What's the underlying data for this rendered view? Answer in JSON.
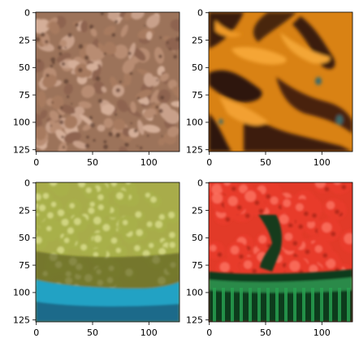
{
  "figure": {
    "background": "#ffffff"
  },
  "chart_data": [
    {
      "type": "image",
      "subject": "brown pebbles / nuts",
      "xticks": [
        0,
        50,
        100
      ],
      "yticks": [
        0,
        25,
        50,
        75,
        100,
        125
      ],
      "xlim": [
        0,
        127
      ],
      "ylim": [
        127,
        0
      ],
      "colors": {
        "base": "#a77a5e",
        "light": "#c8a08a",
        "dark": "#5a3a2c"
      }
    },
    {
      "type": "image",
      "subject": "orange peppers",
      "xticks": [
        0,
        50,
        100
      ],
      "yticks": [
        0,
        25,
        50,
        75,
        100,
        125
      ],
      "xlim": [
        0,
        127
      ],
      "ylim": [
        127,
        0
      ],
      "colors": {
        "base": "#e08a18",
        "light": "#f3a535",
        "dark": "#3a1a0c",
        "accent": "#3d6a6a"
      }
    },
    {
      "type": "image",
      "subject": "green grapes in blue basket",
      "xticks": [
        0,
        50,
        100
      ],
      "yticks": [
        0,
        25,
        50,
        75,
        100,
        125
      ],
      "xlim": [
        0,
        127
      ],
      "ylim": [
        127,
        0
      ],
      "colors": {
        "base": "#a8b04a",
        "light": "#d8dc8a",
        "dark": "#5a5a1c",
        "basket": "#2aa6c8"
      }
    },
    {
      "type": "image",
      "subject": "strawberries in green basket",
      "xticks": [
        0,
        50,
        100
      ],
      "yticks": [
        0,
        25,
        50,
        75,
        100,
        125
      ],
      "xlim": [
        0,
        127
      ],
      "ylim": [
        127,
        0
      ],
      "colors": {
        "base": "#e83b2a",
        "light": "#ff7a6a",
        "dark": "#8a1a12",
        "basket": "#1a7a3a"
      }
    }
  ]
}
